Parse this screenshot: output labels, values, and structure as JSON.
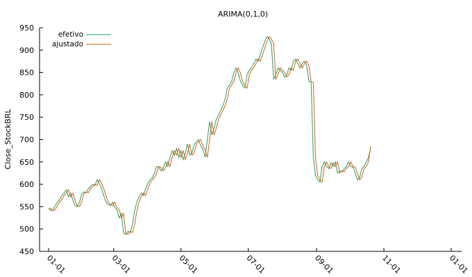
{
  "chart_data": {
    "type": "line",
    "title": "ARIMA(0,1,0)",
    "xlabel": "",
    "ylabel": "Close_StockBRL",
    "x_ticks": [
      "01-01",
      "03-01",
      "05-01",
      "07-01",
      "09-01",
      "11-01",
      "01-01"
    ],
    "y_ticks": [
      450,
      500,
      550,
      600,
      650,
      700,
      750,
      800,
      850,
      900,
      950
    ],
    "ylim": [
      450,
      950
    ],
    "grid": false,
    "legend_position": "top-left",
    "series_colors": [
      "#1a9e77",
      "#d95f02"
    ],
    "series": [
      {
        "name": "efetivo",
        "color": "#1a9e77",
        "points": [
          [
            0,
            546
          ],
          [
            2,
            541
          ],
          [
            4,
            543
          ],
          [
            6,
            552
          ],
          [
            8,
            560
          ],
          [
            10,
            566
          ],
          [
            12,
            575
          ],
          [
            14,
            580
          ],
          [
            16,
            588
          ],
          [
            18,
            572
          ],
          [
            20,
            580
          ],
          [
            22,
            565
          ],
          [
            24,
            552
          ],
          [
            26,
            550
          ],
          [
            28,
            560
          ],
          [
            30,
            578
          ],
          [
            32,
            583
          ],
          [
            34,
            581
          ],
          [
            36,
            590
          ],
          [
            38,
            595
          ],
          [
            40,
            600
          ],
          [
            42,
            597
          ],
          [
            44,
            610
          ],
          [
            46,
            603
          ],
          [
            48,
            590
          ],
          [
            50,
            575
          ],
          [
            52,
            560
          ],
          [
            54,
            555
          ],
          [
            56,
            552
          ],
          [
            58,
            560
          ],
          [
            60,
            548
          ],
          [
            62,
            543
          ],
          [
            64,
            525
          ],
          [
            66,
            535
          ],
          [
            68,
            490
          ],
          [
            70,
            488
          ],
          [
            72,
            495
          ],
          [
            74,
            492
          ],
          [
            76,
            510
          ],
          [
            78,
            540
          ],
          [
            80,
            560
          ],
          [
            82,
            572
          ],
          [
            84,
            580
          ],
          [
            86,
            575
          ],
          [
            88,
            590
          ],
          [
            90,
            602
          ],
          [
            92,
            610
          ],
          [
            94,
            615
          ],
          [
            96,
            625
          ],
          [
            98,
            640
          ],
          [
            100,
            638
          ],
          [
            102,
            630
          ],
          [
            104,
            637
          ],
          [
            106,
            650
          ],
          [
            108,
            640
          ],
          [
            110,
            660
          ],
          [
            112,
            675
          ],
          [
            114,
            665
          ],
          [
            116,
            680
          ],
          [
            118,
            660
          ],
          [
            120,
            675
          ],
          [
            122,
            655
          ],
          [
            124,
            670
          ],
          [
            126,
            690
          ],
          [
            128,
            665
          ],
          [
            130,
            670
          ],
          [
            132,
            690
          ],
          [
            134,
            695
          ],
          [
            136,
            700
          ],
          [
            138,
            685
          ],
          [
            140,
            678
          ],
          [
            142,
            660
          ],
          [
            144,
            700
          ],
          [
            146,
            740
          ],
          [
            148,
            710
          ],
          [
            150,
            725
          ],
          [
            152,
            745
          ],
          [
            154,
            755
          ],
          [
            156,
            765
          ],
          [
            158,
            775
          ],
          [
            160,
            790
          ],
          [
            162,
            815
          ],
          [
            164,
            822
          ],
          [
            166,
            830
          ],
          [
            168,
            850
          ],
          [
            170,
            860
          ],
          [
            172,
            848
          ],
          [
            174,
            830
          ],
          [
            176,
            820
          ],
          [
            178,
            815
          ],
          [
            180,
            845
          ],
          [
            182,
            855
          ],
          [
            184,
            860
          ],
          [
            186,
            870
          ],
          [
            188,
            880
          ],
          [
            190,
            875
          ],
          [
            192,
            890
          ],
          [
            194,
            905
          ],
          [
            196,
            920
          ],
          [
            198,
            930
          ],
          [
            200,
            925
          ],
          [
            202,
            915
          ],
          [
            204,
            835
          ],
          [
            206,
            845
          ],
          [
            208,
            860
          ],
          [
            210,
            855
          ],
          [
            212,
            850
          ],
          [
            214,
            840
          ],
          [
            216,
            845
          ],
          [
            218,
            860
          ],
          [
            220,
            855
          ],
          [
            222,
            875
          ],
          [
            224,
            880
          ],
          [
            226,
            870
          ],
          [
            228,
            860
          ],
          [
            230,
            870
          ],
          [
            232,
            875
          ],
          [
            234,
            865
          ],
          [
            236,
            830
          ],
          [
            238,
            828
          ],
          [
            240,
            660
          ],
          [
            242,
            620
          ],
          [
            244,
            610
          ],
          [
            246,
            605
          ],
          [
            248,
            640
          ],
          [
            250,
            650
          ],
          [
            252,
            640
          ],
          [
            254,
            635
          ],
          [
            256,
            648
          ],
          [
            258,
            640
          ],
          [
            260,
            650
          ],
          [
            262,
            625
          ],
          [
            264,
            630
          ],
          [
            266,
            628
          ],
          [
            268,
            635
          ],
          [
            270,
            640
          ],
          [
            272,
            650
          ],
          [
            274,
            640
          ],
          [
            276,
            638
          ],
          [
            278,
            625
          ],
          [
            280,
            610
          ],
          [
            282,
            615
          ],
          [
            284,
            635
          ],
          [
            286,
            640
          ],
          [
            288,
            650
          ],
          [
            290,
            660
          ],
          [
            292,
            680
          ]
        ]
      },
      {
        "name": "ajustado",
        "color": "#d95f02",
        "points": [
          [
            0,
            546
          ],
          [
            2,
            546
          ],
          [
            4,
            541
          ],
          [
            6,
            543
          ],
          [
            8,
            552
          ],
          [
            10,
            560
          ],
          [
            12,
            566
          ],
          [
            14,
            575
          ],
          [
            16,
            580
          ],
          [
            18,
            588
          ],
          [
            20,
            572
          ],
          [
            22,
            580
          ],
          [
            24,
            565
          ],
          [
            26,
            552
          ],
          [
            28,
            550
          ],
          [
            30,
            560
          ],
          [
            32,
            578
          ],
          [
            34,
            583
          ],
          [
            36,
            581
          ],
          [
            38,
            590
          ],
          [
            40,
            595
          ],
          [
            42,
            600
          ],
          [
            44,
            597
          ],
          [
            46,
            610
          ],
          [
            48,
            603
          ],
          [
            50,
            590
          ],
          [
            52,
            575
          ],
          [
            54,
            560
          ],
          [
            56,
            555
          ],
          [
            58,
            552
          ],
          [
            60,
            560
          ],
          [
            62,
            548
          ],
          [
            64,
            543
          ],
          [
            66,
            525
          ],
          [
            68,
            535
          ],
          [
            70,
            490
          ],
          [
            72,
            488
          ],
          [
            74,
            495
          ],
          [
            76,
            492
          ],
          [
            78,
            510
          ],
          [
            80,
            540
          ],
          [
            82,
            560
          ],
          [
            84,
            572
          ],
          [
            86,
            580
          ],
          [
            88,
            575
          ],
          [
            90,
            590
          ],
          [
            92,
            602
          ],
          [
            94,
            610
          ],
          [
            96,
            615
          ],
          [
            98,
            625
          ],
          [
            100,
            640
          ],
          [
            102,
            638
          ],
          [
            104,
            630
          ],
          [
            106,
            637
          ],
          [
            108,
            650
          ],
          [
            110,
            640
          ],
          [
            112,
            660
          ],
          [
            114,
            675
          ],
          [
            116,
            665
          ],
          [
            118,
            680
          ],
          [
            120,
            660
          ],
          [
            122,
            675
          ],
          [
            124,
            655
          ],
          [
            126,
            670
          ],
          [
            128,
            690
          ],
          [
            130,
            665
          ],
          [
            132,
            670
          ],
          [
            134,
            690
          ],
          [
            136,
            695
          ],
          [
            138,
            700
          ],
          [
            140,
            685
          ],
          [
            142,
            678
          ],
          [
            144,
            660
          ],
          [
            146,
            700
          ],
          [
            148,
            740
          ],
          [
            150,
            710
          ],
          [
            152,
            725
          ],
          [
            154,
            745
          ],
          [
            156,
            755
          ],
          [
            158,
            765
          ],
          [
            160,
            775
          ],
          [
            162,
            790
          ],
          [
            164,
            815
          ],
          [
            166,
            822
          ],
          [
            168,
            830
          ],
          [
            170,
            850
          ],
          [
            172,
            860
          ],
          [
            174,
            848
          ],
          [
            176,
            830
          ],
          [
            178,
            820
          ],
          [
            180,
            815
          ],
          [
            182,
            845
          ],
          [
            184,
            855
          ],
          [
            186,
            860
          ],
          [
            188,
            870
          ],
          [
            190,
            880
          ],
          [
            192,
            875
          ],
          [
            194,
            890
          ],
          [
            196,
            905
          ],
          [
            198,
            920
          ],
          [
            200,
            930
          ],
          [
            202,
            925
          ],
          [
            204,
            915
          ],
          [
            206,
            835
          ],
          [
            208,
            845
          ],
          [
            210,
            860
          ],
          [
            212,
            855
          ],
          [
            214,
            850
          ],
          [
            216,
            840
          ],
          [
            218,
            845
          ],
          [
            220,
            860
          ],
          [
            222,
            855
          ],
          [
            224,
            875
          ],
          [
            226,
            880
          ],
          [
            228,
            870
          ],
          [
            230,
            860
          ],
          [
            232,
            870
          ],
          [
            234,
            875
          ],
          [
            236,
            865
          ],
          [
            238,
            830
          ],
          [
            240,
            828
          ],
          [
            242,
            660
          ],
          [
            244,
            620
          ],
          [
            246,
            610
          ],
          [
            248,
            605
          ],
          [
            250,
            640
          ],
          [
            252,
            650
          ],
          [
            254,
            640
          ],
          [
            256,
            635
          ],
          [
            258,
            648
          ],
          [
            260,
            640
          ],
          [
            262,
            650
          ],
          [
            264,
            625
          ],
          [
            266,
            630
          ],
          [
            268,
            628
          ],
          [
            270,
            635
          ],
          [
            272,
            640
          ],
          [
            274,
            650
          ],
          [
            276,
            640
          ],
          [
            278,
            638
          ],
          [
            280,
            625
          ],
          [
            282,
            610
          ],
          [
            284,
            615
          ],
          [
            286,
            635
          ],
          [
            288,
            640
          ],
          [
            290,
            650
          ],
          [
            292,
            685
          ]
        ]
      }
    ]
  }
}
